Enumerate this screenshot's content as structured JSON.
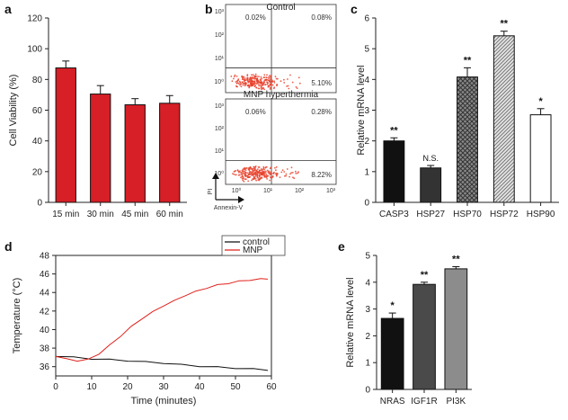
{
  "panels": {
    "a": "a",
    "b": "b",
    "c": "c",
    "d": "d",
    "e": "e"
  },
  "chart_data": [
    {
      "id": "a",
      "type": "bar",
      "categories": [
        "15 min",
        "30 min",
        "45 min",
        "60 min"
      ],
      "values": [
        87.5,
        70.5,
        63.5,
        64.5
      ],
      "errors": [
        4.5,
        5.5,
        4.0,
        5.0
      ],
      "ylabel": "Cell Viability (%)",
      "ylim": [
        0,
        120
      ],
      "yticks": [
        "0",
        "20",
        "40",
        "60",
        "80",
        "100",
        "120"
      ],
      "bar_color": "#d61f26"
    },
    {
      "id": "b",
      "type": "scatter",
      "plots": [
        {
          "title": "Control",
          "quadrants": {
            "ul": "0.02%",
            "ur": "0.08%",
            "lr": "5.10%"
          }
        },
        {
          "title": "MNP hyperthermia",
          "quadrants": {
            "ul": "0.06%",
            "ur": "0.28%",
            "lr": "8.22%"
          }
        }
      ],
      "y_ticks": [
        "10⁰",
        "10¹",
        "10²",
        "10³"
      ],
      "x_ticks": [
        "10⁰",
        "10¹",
        "10²",
        "10³"
      ],
      "ylabel": "PI",
      "xlabel": "Annexin-V",
      "dot_color": "#e8412c"
    },
    {
      "id": "c",
      "type": "bar",
      "categories": [
        "CASP3",
        "HSP27",
        "HSP70",
        "HSP72",
        "HSP90"
      ],
      "values": [
        2.0,
        1.12,
        4.08,
        5.42,
        2.85
      ],
      "errors": [
        0.1,
        0.08,
        0.3,
        0.15,
        0.2
      ],
      "significance": [
        "**",
        "N.S.",
        "**",
        "**",
        "*"
      ],
      "fills": [
        "solid-black",
        "solid-dark",
        "crosshatch",
        "diagonal",
        "white"
      ],
      "ylabel": "Relative mRNA level",
      "ylim": [
        0,
        6
      ],
      "yticks": [
        "0",
        "1",
        "2",
        "3",
        "4",
        "5",
        "6"
      ]
    },
    {
      "id": "d",
      "type": "line",
      "xlabel": "Time (minutes)",
      "ylabel": "Temperature (°C)",
      "xlim": [
        0,
        60
      ],
      "ylim": [
        35,
        48
      ],
      "xticks": [
        "0",
        "10",
        "20",
        "30",
        "40",
        "50",
        "60"
      ],
      "yticks": [
        "36",
        "38",
        "40",
        "42",
        "44",
        "46",
        "48"
      ],
      "legend_position": "top-right",
      "series": [
        {
          "name": "control",
          "color": "#111111",
          "x": [
            0,
            5,
            10,
            15,
            20,
            25,
            30,
            35,
            40,
            45,
            50,
            55,
            59
          ],
          "y": [
            37.1,
            37.0,
            36.85,
            36.75,
            36.65,
            36.5,
            36.4,
            36.2,
            36.05,
            35.95,
            35.85,
            35.75,
            35.65
          ]
        },
        {
          "name": "MNP",
          "color": "#e0201b",
          "x": [
            0,
            3,
            6,
            9,
            12,
            15,
            18,
            21,
            24,
            27,
            30,
            33,
            36,
            39,
            42,
            45,
            48,
            51,
            54,
            57,
            59
          ],
          "y": [
            37.1,
            36.8,
            36.65,
            36.75,
            37.4,
            38.3,
            39.3,
            40.3,
            41.2,
            41.9,
            42.6,
            43.1,
            43.7,
            44.1,
            44.5,
            44.8,
            45.0,
            45.2,
            45.35,
            45.45,
            45.5
          ]
        }
      ]
    },
    {
      "id": "e",
      "type": "bar",
      "categories": [
        "NRAS",
        "IGF1R",
        "PI3K"
      ],
      "values": [
        2.65,
        3.92,
        4.5
      ],
      "errors": [
        0.2,
        0.08,
        0.08
      ],
      "significance": [
        "*",
        "**",
        "**"
      ],
      "colors": [
        "#111111",
        "#4a4a4a",
        "#8c8c8c"
      ],
      "ylabel": "Relative mRNA level",
      "ylim": [
        0,
        5
      ],
      "yticks": [
        "0",
        "1",
        "2",
        "3",
        "4",
        "5"
      ]
    }
  ]
}
